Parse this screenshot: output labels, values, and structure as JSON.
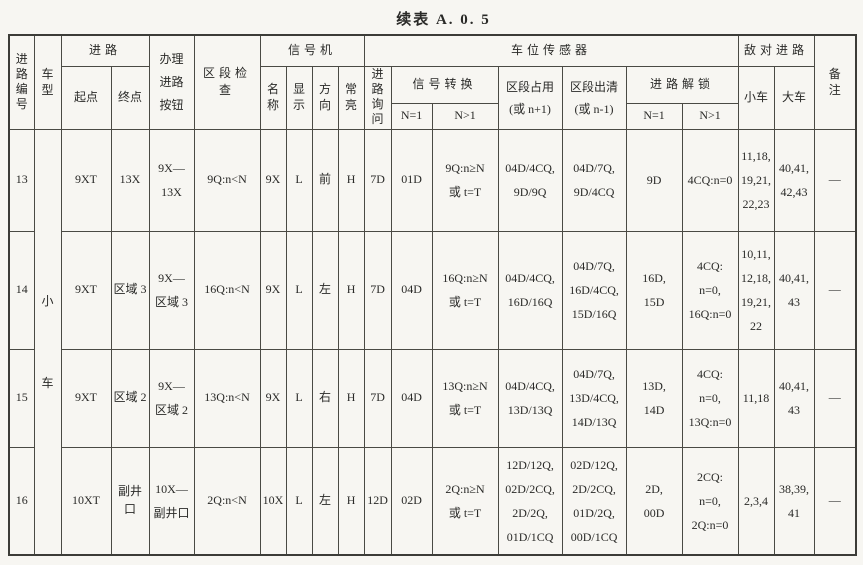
{
  "title": "续表 A. 0. 5",
  "colors": {
    "paper": "#f7f6f2",
    "ink": "#2a2a28",
    "grid_line": "#4a4a44"
  },
  "header": {
    "route_no": "进路编号",
    "vehicle": "车型",
    "route": "进路",
    "start": "起点",
    "end": "终点",
    "button_lines": [
      "办理",
      "进路",
      "按钮"
    ],
    "section_check": "区段检查",
    "signal": "信号机",
    "signal_name": "名称",
    "display": "显示",
    "direction": "方向",
    "steady_on": "常亮",
    "route_query": "进路询问",
    "sensor": "车位传感器",
    "signal_switch": "信号转换",
    "n_eq_1": "N=1",
    "n_gt_1": "N>1",
    "occupied_lines": [
      "区段占用",
      "(或 n+1)"
    ],
    "clear_lines": [
      "区段出清",
      "(或 n-1)"
    ],
    "route_unlock": "进路解锁",
    "hostile": "敌对进路",
    "small_car": "小车",
    "large_car": "大车",
    "remarks": "备注"
  },
  "vehicle_group": "小车",
  "rows": [
    {
      "no": "13",
      "start": "9XT",
      "end": "13X",
      "button": [
        "9X—",
        "13X"
      ],
      "check": "9Q:n<N",
      "name": "9X",
      "display": "L",
      "direction": "前",
      "steady": "H",
      "query": "7D",
      "sw_n1": "01D",
      "sw_ngt1": [
        "9Q:n≥N",
        "或 t=T"
      ],
      "occupied": [
        "04D/4CQ,",
        "9D/9Q"
      ],
      "clear": [
        "04D/7Q,",
        "9D/4CQ"
      ],
      "unlock_n1": [
        "9D"
      ],
      "unlock_ngt1": [
        "4CQ:n=0"
      ],
      "small": [
        "11,18,",
        "19,21,",
        "22,23"
      ],
      "large": [
        "40,41,",
        "42,43"
      ],
      "note": "—"
    },
    {
      "no": "14",
      "start": "9XT",
      "end": "区域 3",
      "button": [
        "9X—",
        "区域 3"
      ],
      "check": "16Q:n<N",
      "name": "9X",
      "display": "L",
      "direction": "左",
      "steady": "H",
      "query": "7D",
      "sw_n1": "04D",
      "sw_ngt1": [
        "16Q:n≥N",
        "或 t=T"
      ],
      "occupied": [
        "04D/4CQ,",
        "16D/16Q"
      ],
      "clear": [
        "04D/7Q,",
        "16D/4CQ,",
        "15D/16Q"
      ],
      "unlock_n1": [
        "16D,",
        "15D"
      ],
      "unlock_ngt1": [
        "4CQ:",
        "n=0,",
        "16Q:n=0"
      ],
      "small": [
        "10,11,",
        "12,18,",
        "19,21,",
        "22"
      ],
      "large": [
        "40,41,",
        "43"
      ],
      "note": "—"
    },
    {
      "no": "15",
      "start": "9XT",
      "end": "区域 2",
      "button": [
        "9X—",
        "区域 2"
      ],
      "check": "13Q:n<N",
      "name": "9X",
      "display": "L",
      "direction": "右",
      "steady": "H",
      "query": "7D",
      "sw_n1": "04D",
      "sw_ngt1": [
        "13Q:n≥N",
        "或 t=T"
      ],
      "occupied": [
        "04D/4CQ,",
        "13D/13Q"
      ],
      "clear": [
        "04D/7Q,",
        "13D/4CQ,",
        "14D/13Q"
      ],
      "unlock_n1": [
        "13D,",
        "14D"
      ],
      "unlock_ngt1": [
        "4CQ:",
        "n=0,",
        "13Q:n=0"
      ],
      "small": [
        "11,18"
      ],
      "large": [
        "40,41,",
        "43"
      ],
      "note": "—"
    },
    {
      "no": "16",
      "start": "10XT",
      "end": "副井口",
      "button": [
        "10X—",
        "副井口"
      ],
      "check": "2Q:n<N",
      "name": "10X",
      "display": "L",
      "direction": "左",
      "steady": "H",
      "query": "12D",
      "sw_n1": "02D",
      "sw_ngt1": [
        "2Q:n≥N",
        "或 t=T"
      ],
      "occupied": [
        "12D/12Q,",
        "02D/2CQ,",
        "2D/2Q,",
        "01D/1CQ"
      ],
      "clear": [
        "02D/12Q,",
        "2D/2CQ,",
        "01D/2Q,",
        "00D/1CQ"
      ],
      "unlock_n1": [
        "2D,",
        "00D"
      ],
      "unlock_ngt1": [
        "2CQ:",
        "n=0,",
        "2Q:n=0"
      ],
      "small": [
        "2,3,4"
      ],
      "large": [
        "38,39,",
        "41"
      ],
      "note": "—"
    }
  ]
}
